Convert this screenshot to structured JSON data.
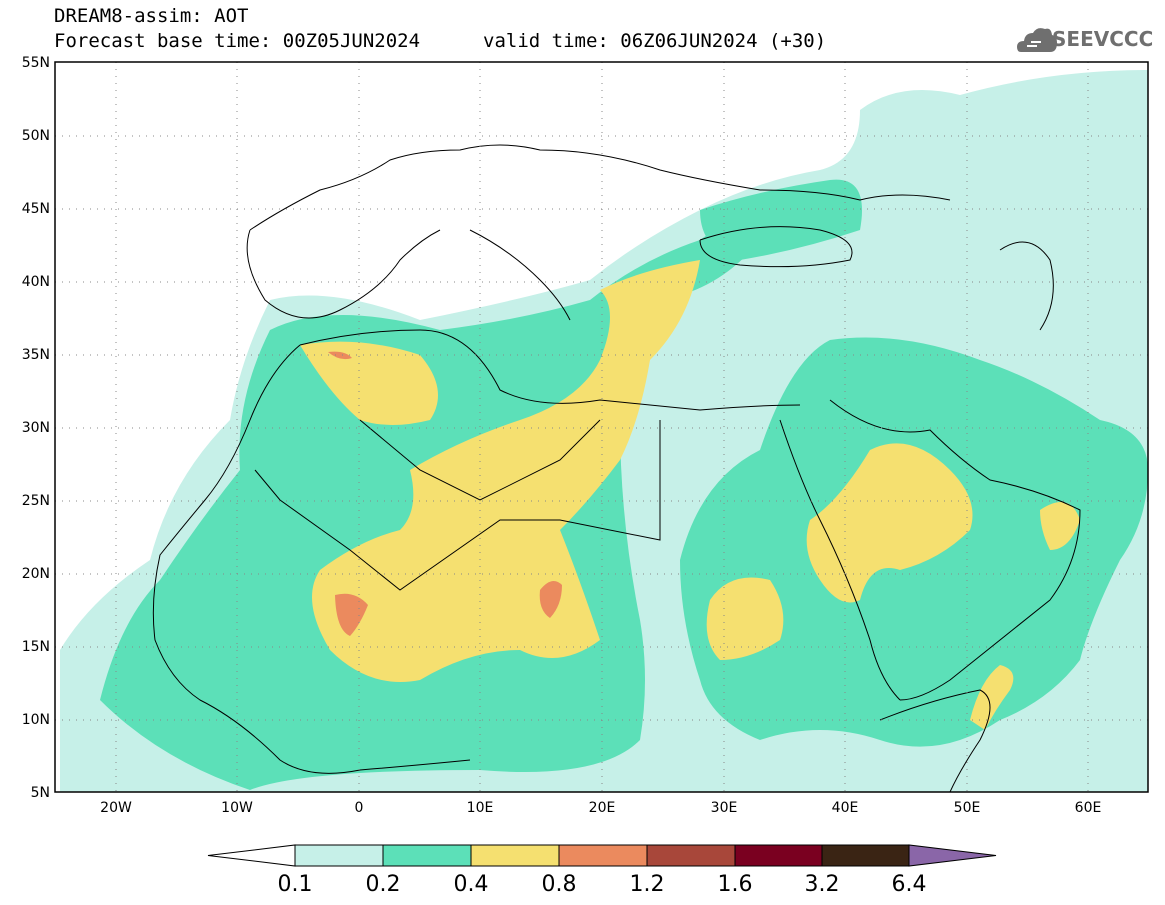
{
  "header": {
    "title": "DREAM8-assim: AOT",
    "base_time": "Forecast base time: 00Z05JUN2024",
    "valid_time": "valid time: 06Z06JUN2024 (+30)",
    "logo_text": "SEEVCCC",
    "logo_icon": "cloud-icon"
  },
  "map": {
    "projection": "latlon",
    "lon_range": [
      -25,
      65
    ],
    "lat_range": [
      5,
      55
    ],
    "lat_ticks": [
      "55N",
      "50N",
      "45N",
      "40N",
      "35N",
      "30N",
      "25N",
      "20N",
      "15N",
      "10N",
      "5N"
    ],
    "lon_ticks": [
      "20W",
      "10W",
      "0",
      "10E",
      "20E",
      "30E",
      "40E",
      "50E",
      "60E"
    ],
    "gridlines": "dotted"
  },
  "colorbar": {
    "levels": [
      "0.1",
      "0.2",
      "0.4",
      "0.8",
      "1.2",
      "1.6",
      "3.2",
      "6.4"
    ],
    "colors": [
      "#ffffff",
      "#c6f0e8",
      "#5ce0b8",
      "#f5e070",
      "#eb8a5e",
      "#a8473a",
      "#7a0020",
      "#3a2414",
      "#8a66a8"
    ]
  }
}
